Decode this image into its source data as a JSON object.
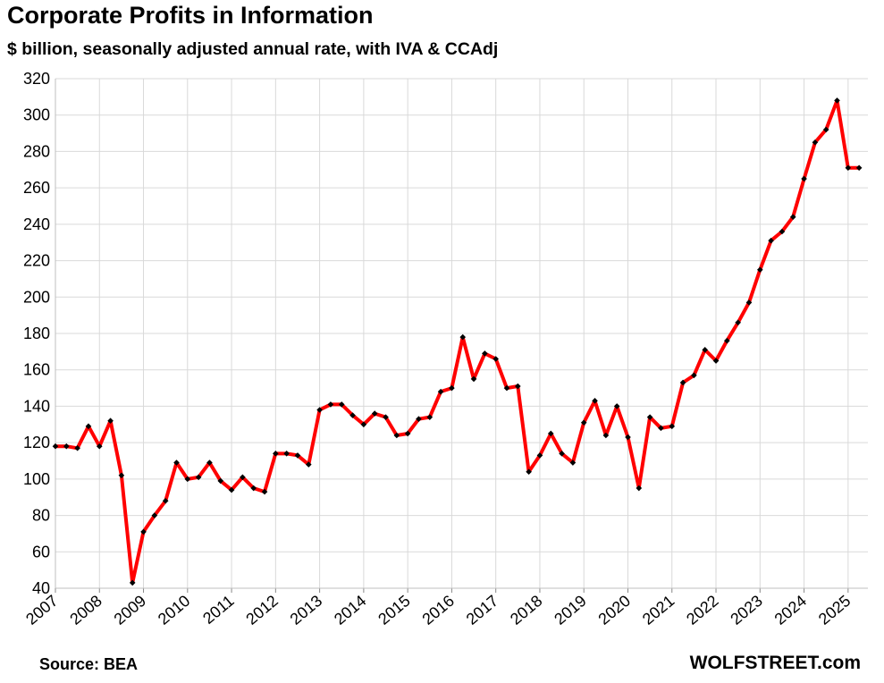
{
  "title": "Corporate Profits in Information",
  "subtitle": "$ billion, seasonally adjusted annual rate, with IVA & CCAdj",
  "source": "Source: BEA",
  "brand": "WOLFSTREET.com",
  "colors": {
    "line": "#ff0000",
    "marker": "#000000",
    "grid": "#d9d9d9"
  },
  "chart_data": {
    "type": "line",
    "title": "Corporate Profits in Information",
    "subtitle": "$ billion, seasonally adjusted annual rate, with IVA & CCAdj",
    "ylim": [
      40,
      320
    ],
    "yticks": [
      40,
      60,
      80,
      100,
      120,
      140,
      160,
      180,
      200,
      220,
      240,
      260,
      280,
      300,
      320
    ],
    "xtick_labels": [
      "2007",
      "2008",
      "2009",
      "2010",
      "2011",
      "2012",
      "2013",
      "2014",
      "2015",
      "2016",
      "2017",
      "2018",
      "2019",
      "2020",
      "2021",
      "2022",
      "2023",
      "2024",
      "2025"
    ],
    "grid": true,
    "series": [
      {
        "x": [
          "2007 Q1",
          "2007 Q2",
          "2007 Q3",
          "2007 Q4",
          "2008 Q1",
          "2008 Q2",
          "2008 Q3",
          "2008 Q4",
          "2009 Q1",
          "2009 Q2",
          "2009 Q3",
          "2009 Q4",
          "2010 Q1",
          "2010 Q2",
          "2010 Q3",
          "2010 Q4",
          "2011 Q1",
          "2011 Q2",
          "2011 Q3",
          "2011 Q4",
          "2012 Q1",
          "2012 Q2",
          "2012 Q3",
          "2012 Q4",
          "2013 Q1",
          "2013 Q2",
          "2013 Q3",
          "2013 Q4",
          "2014 Q1",
          "2014 Q2",
          "2014 Q3",
          "2014 Q4",
          "2015 Q1",
          "2015 Q2",
          "2015 Q3",
          "2015 Q4",
          "2016 Q1",
          "2016 Q2",
          "2016 Q3",
          "2016 Q4",
          "2017 Q1",
          "2017 Q2",
          "2017 Q3",
          "2017 Q4",
          "2018 Q1",
          "2018 Q2",
          "2018 Q3",
          "2018 Q4",
          "2019 Q1",
          "2019 Q2",
          "2019 Q3",
          "2019 Q4",
          "2020 Q1",
          "2020 Q2",
          "2020 Q3",
          "2020 Q4",
          "2021 Q1",
          "2021 Q2",
          "2021 Q3",
          "2021 Q4",
          "2022 Q1",
          "2022 Q2",
          "2022 Q3",
          "2022 Q4",
          "2023 Q1",
          "2023 Q2",
          "2023 Q3",
          "2023 Q4",
          "2024 Q1",
          "2024 Q2",
          "2024 Q3",
          "2024 Q4",
          "2025 Q1",
          "2025 Q2"
        ],
        "values": [
          118,
          118,
          117,
          129,
          118,
          132,
          102,
          43,
          71,
          80,
          88,
          109,
          100,
          101,
          109,
          99,
          94,
          101,
          95,
          93,
          114,
          114,
          113,
          108,
          138,
          141,
          141,
          135,
          130,
          136,
          134,
          124,
          125,
          133,
          134,
          148,
          150,
          178,
          155,
          169,
          166,
          150,
          151,
          104,
          113,
          125,
          114,
          109,
          131,
          143,
          124,
          140,
          123,
          95,
          134,
          128,
          129,
          153,
          157,
          171,
          165,
          176,
          186,
          197,
          215,
          231,
          236,
          244,
          265,
          285,
          292,
          308,
          271,
          271
        ]
      }
    ]
  }
}
